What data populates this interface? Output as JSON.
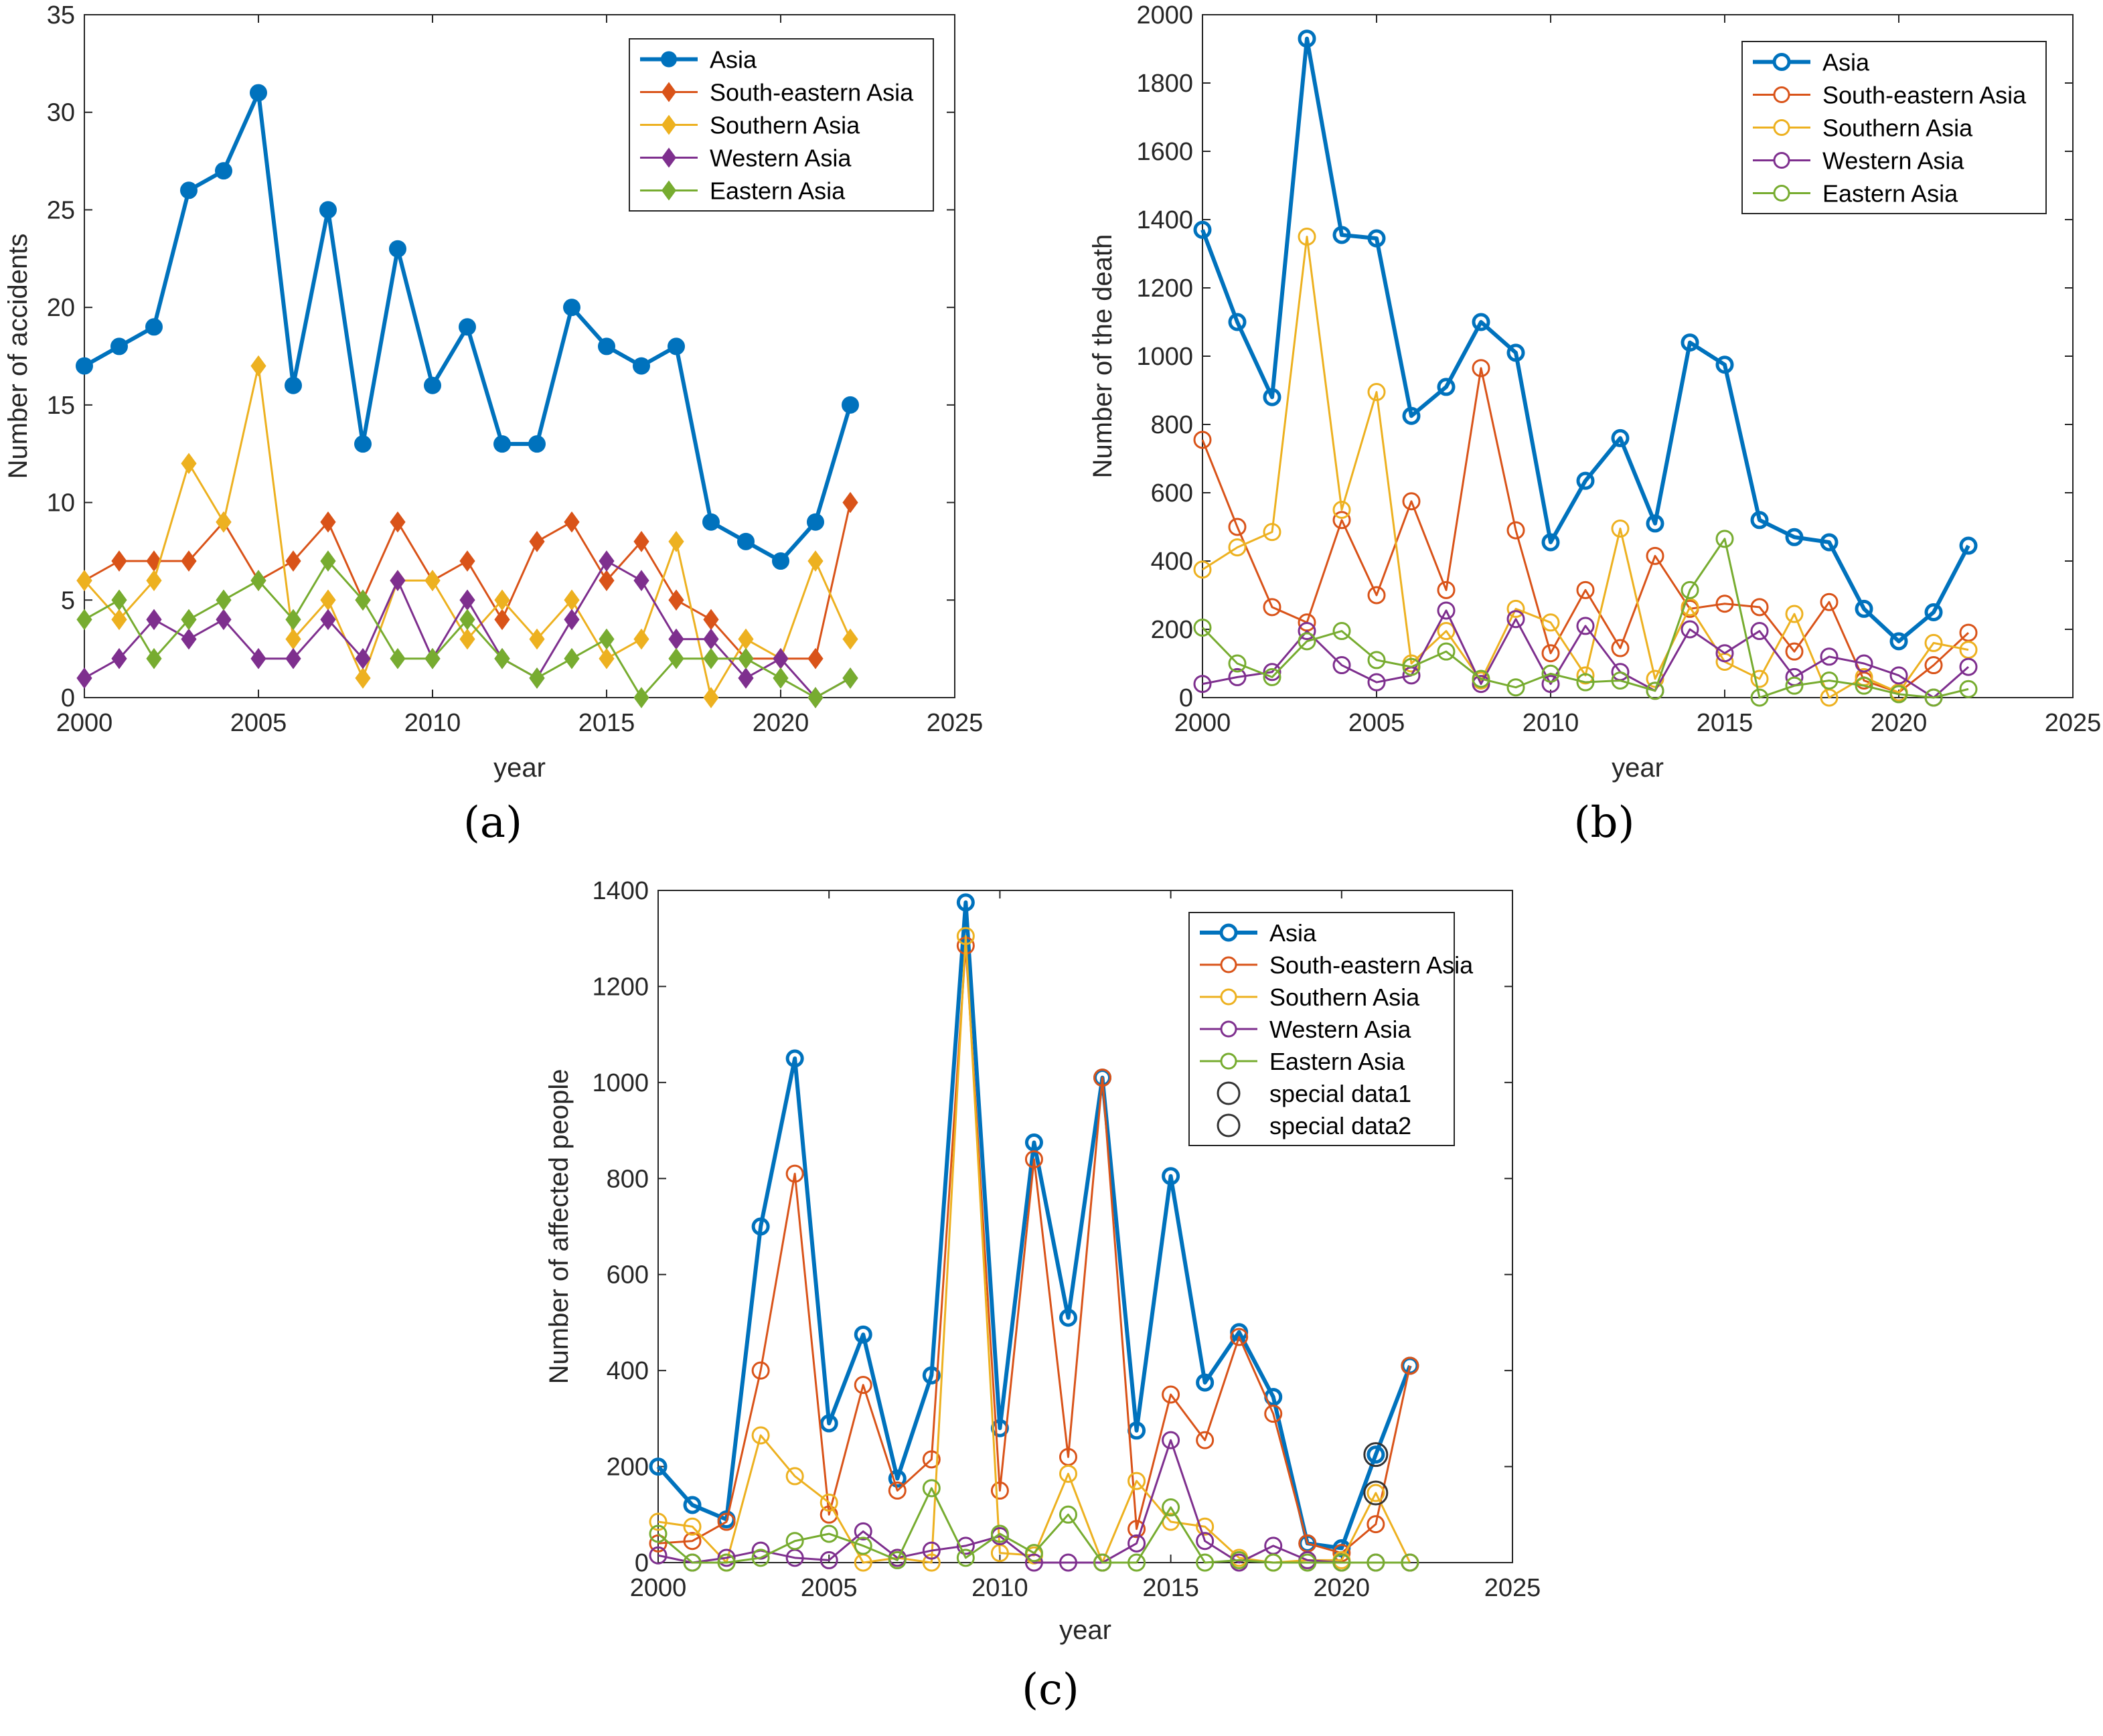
{
  "colors": {
    "asia": "#0072BD",
    "south_eastern": "#D95319",
    "southern": "#EDB120",
    "western": "#7E2F8E",
    "eastern": "#77AC30",
    "special": "#333333",
    "axis": "#262626",
    "box": "#262626"
  },
  "chart_data": [
    {
      "type": "line",
      "panel_label": "(a)",
      "xlabel": "year",
      "ylabel": "Number of accidents",
      "xlim": [
        2000,
        2025
      ],
      "ylim": [
        0,
        35
      ],
      "xticks": [
        "2000",
        "2005",
        "2010",
        "2015",
        "2020",
        "2025"
      ],
      "yticks": [
        "0",
        "5",
        "10",
        "15",
        "20",
        "25",
        "30",
        "35"
      ],
      "legend_position": "top-right",
      "marker": "filled-circle-diamond",
      "x": [
        2000,
        2001,
        2002,
        2003,
        2004,
        2005,
        2006,
        2007,
        2008,
        2009,
        2010,
        2011,
        2012,
        2013,
        2014,
        2015,
        2016,
        2017,
        2018,
        2019,
        2020,
        2021,
        2022
      ],
      "series": [
        {
          "name": "Asia",
          "color_key": "asia",
          "values": [
            17,
            18,
            19,
            26,
            27,
            31,
            16,
            25,
            13,
            23,
            16,
            19,
            13,
            13,
            20,
            18,
            17,
            18,
            9,
            8,
            7,
            9,
            15
          ]
        },
        {
          "name": "South-eastern Asia",
          "color_key": "south_eastern",
          "values": [
            6,
            7,
            7,
            7,
            9,
            6,
            7,
            9,
            5,
            9,
            6,
            7,
            4,
            8,
            9,
            6,
            8,
            5,
            4,
            2,
            2,
            2,
            10
          ]
        },
        {
          "name": "Southern Asia",
          "color_key": "southern",
          "values": [
            6,
            4,
            6,
            12,
            9,
            17,
            3,
            5,
            1,
            6,
            6,
            3,
            5,
            3,
            5,
            2,
            3,
            8,
            0,
            3,
            2,
            7,
            3
          ]
        },
        {
          "name": "Western Asia",
          "color_key": "western",
          "values": [
            1,
            2,
            4,
            3,
            4,
            2,
            2,
            4,
            2,
            6,
            2,
            5,
            2,
            1,
            4,
            7,
            6,
            3,
            3,
            1,
            2,
            0,
            1
          ]
        },
        {
          "name": "Eastern Asia",
          "color_key": "eastern",
          "values": [
            4,
            5,
            2,
            4,
            5,
            6,
            4,
            7,
            5,
            2,
            2,
            4,
            2,
            1,
            2,
            3,
            0,
            2,
            2,
            2,
            1,
            0,
            1
          ]
        }
      ]
    },
    {
      "type": "line",
      "panel_label": "(b)",
      "xlabel": "year",
      "ylabel": "Number of the death",
      "xlim": [
        2000,
        2025
      ],
      "ylim": [
        0,
        2000
      ],
      "xticks": [
        "2000",
        "2005",
        "2010",
        "2015",
        "2020",
        "2025"
      ],
      "yticks": [
        "0",
        "200",
        "400",
        "600",
        "800",
        "1000",
        "1200",
        "1400",
        "1600",
        "1800",
        "2000"
      ],
      "legend_position": "top-right",
      "marker": "open-circle",
      "x": [
        2000,
        2001,
        2002,
        2003,
        2004,
        2005,
        2006,
        2007,
        2008,
        2009,
        2010,
        2011,
        2012,
        2013,
        2014,
        2015,
        2016,
        2017,
        2018,
        2019,
        2020,
        2021,
        2022
      ],
      "series": [
        {
          "name": "Asia",
          "color_key": "asia",
          "values": [
            1370,
            1100,
            880,
            1930,
            1355,
            1345,
            825,
            910,
            1100,
            1010,
            455,
            635,
            760,
            510,
            1040,
            975,
            520,
            470,
            455,
            260,
            165,
            250,
            445
          ]
        },
        {
          "name": "South-eastern Asia",
          "color_key": "south_eastern",
          "values": [
            755,
            500,
            265,
            220,
            520,
            300,
            575,
            315,
            965,
            490,
            130,
            315,
            145,
            415,
            260,
            275,
            265,
            135,
            280,
            50,
            15,
            95,
            190
          ]
        },
        {
          "name": "Southern Asia",
          "color_key": "southern",
          "values": [
            375,
            440,
            485,
            1350,
            550,
            895,
            100,
            195,
            50,
            260,
            220,
            65,
            495,
            55,
            265,
            105,
            55,
            245,
            0,
            60,
            15,
            160,
            140
          ]
        },
        {
          "name": "Western Asia",
          "color_key": "western",
          "values": [
            40,
            60,
            75,
            195,
            95,
            45,
            65,
            255,
            40,
            230,
            40,
            210,
            75,
            20,
            200,
            130,
            195,
            60,
            120,
            100,
            65,
            0,
            90
          ]
        },
        {
          "name": "Eastern Asia",
          "color_key": "eastern",
          "values": [
            205,
            100,
            60,
            165,
            195,
            110,
            90,
            135,
            55,
            30,
            70,
            45,
            50,
            20,
            315,
            465,
            0,
            35,
            50,
            35,
            10,
            0,
            25
          ]
        }
      ]
    },
    {
      "type": "line",
      "panel_label": "(c)",
      "xlabel": "year",
      "ylabel": "Number of affected people",
      "xlim": [
        2000,
        2025
      ],
      "ylim": [
        0,
        1400
      ],
      "xticks": [
        "2000",
        "2005",
        "2010",
        "2015",
        "2020",
        "2025"
      ],
      "yticks": [
        "0",
        "200",
        "400",
        "600",
        "800",
        "1000",
        "1200",
        "1400"
      ],
      "legend_position": "top-right",
      "marker": "open-circle",
      "x": [
        2000,
        2001,
        2002,
        2003,
        2004,
        2005,
        2006,
        2007,
        2008,
        2009,
        2010,
        2011,
        2012,
        2013,
        2014,
        2015,
        2016,
        2017,
        2018,
        2019,
        2020,
        2021,
        2022
      ],
      "series": [
        {
          "name": "Asia",
          "color_key": "asia",
          "values": [
            200,
            120,
            90,
            700,
            1050,
            290,
            475,
            175,
            390,
            1375,
            280,
            875,
            510,
            1010,
            275,
            805,
            375,
            480,
            345,
            40,
            30,
            225,
            410
          ]
        },
        {
          "name": "South-eastern Asia",
          "color_key": "south_eastern",
          "values": [
            40,
            45,
            85,
            400,
            810,
            100,
            370,
            150,
            215,
            1285,
            150,
            840,
            220,
            1010,
            70,
            350,
            255,
            470,
            310,
            40,
            20,
            80,
            410
          ]
        },
        {
          "name": "Southern Asia",
          "color_key": "southern",
          "values": [
            85,
            75,
            0,
            265,
            180,
            125,
            0,
            10,
            0,
            1305,
            20,
            15,
            185,
            0,
            170,
            85,
            75,
            10,
            0,
            5,
            5,
            145,
            0
          ]
        },
        {
          "name": "Western Asia",
          "color_key": "western",
          "values": [
            15,
            0,
            10,
            25,
            10,
            5,
            65,
            10,
            25,
            35,
            55,
            0,
            0,
            0,
            40,
            255,
            45,
            0,
            35,
            5,
            0,
            0,
            0
          ]
        },
        {
          "name": "Eastern Asia",
          "color_key": "eastern",
          "values": [
            60,
            0,
            0,
            10,
            45,
            60,
            35,
            5,
            155,
            10,
            60,
            20,
            100,
            0,
            0,
            115,
            0,
            5,
            0,
            0,
            0,
            0,
            0
          ]
        }
      ],
      "special_points": [
        {
          "name": "special data1",
          "x": 2021,
          "y": 225
        },
        {
          "name": "special data2",
          "x": 2021,
          "y": 145
        }
      ]
    }
  ]
}
